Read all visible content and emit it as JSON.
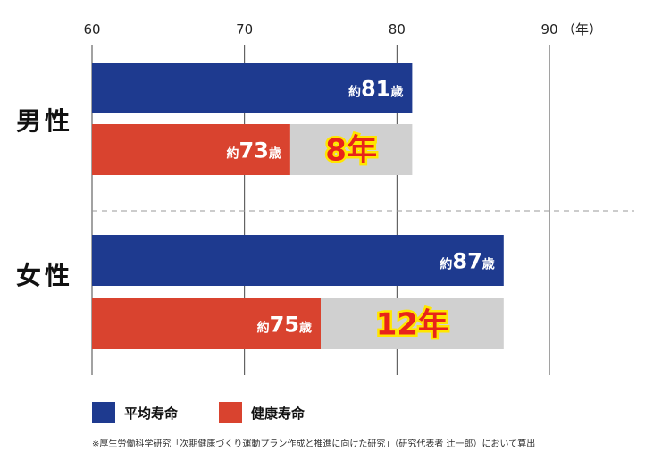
{
  "chart_data": {
    "type": "bar",
    "orientation": "horizontal",
    "x_ticks": [
      60,
      70,
      80,
      90
    ],
    "x_unit": "（年）",
    "xlim": [
      60,
      90
    ],
    "groups": [
      {
        "name": "男性",
        "bars": [
          {
            "series": "平均寿命",
            "value": 81,
            "label_prefix": "約",
            "label_num": "81",
            "label_suffix": "歳"
          },
          {
            "series": "健康寿命",
            "value": 73,
            "label_prefix": "約",
            "label_num": "73",
            "label_suffix": "歳"
          }
        ],
        "gap_label": "8年"
      },
      {
        "name": "女性",
        "bars": [
          {
            "series": "平均寿命",
            "value": 87,
            "label_prefix": "約",
            "label_num": "87",
            "label_suffix": "歳"
          },
          {
            "series": "健康寿命",
            "value": 75,
            "label_prefix": "約",
            "label_num": "75",
            "label_suffix": "歳"
          }
        ],
        "gap_label": "12年"
      }
    ],
    "legend": [
      {
        "name": "平均寿命",
        "color": "#1e3a8f"
      },
      {
        "name": "健康寿命",
        "color": "#d9432f"
      }
    ],
    "gap_color": "#d0d0d0",
    "grid": true
  },
  "note": "※厚生労働科学研究「次期健康づくり運動プラン作成と推進に向けた研究」（研究代表者 辻一郎）において算出"
}
